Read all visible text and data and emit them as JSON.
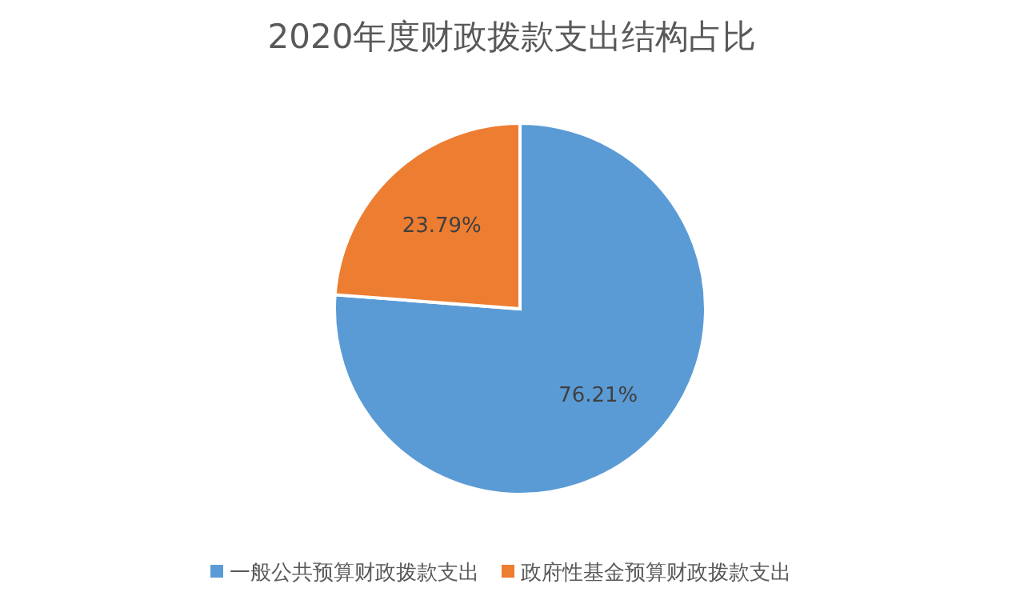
{
  "chart_data": {
    "type": "pie",
    "title": "2020年度财政拨款支出结构占比",
    "categories": [
      "一般公共预算财政拨款支出",
      "政府性基金预算财政拨款支出"
    ],
    "values": [
      76.21,
      23.79
    ],
    "colors": [
      "#5b9bd5",
      "#ed7d31"
    ],
    "value_labels": [
      "76.21%",
      "23.79%"
    ],
    "legend": "bottom"
  }
}
